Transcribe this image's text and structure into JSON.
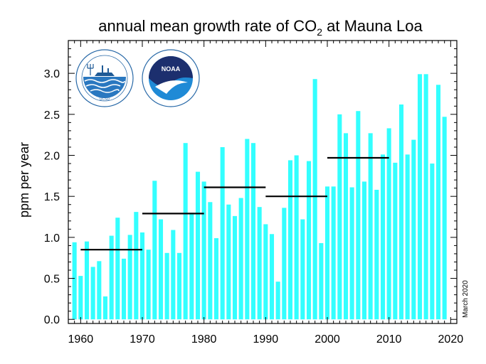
{
  "chart_data": {
    "type": "bar",
    "title": "annual mean growth rate of CO",
    "title_subscript": "2",
    "title_suffix": " at Mauna Loa",
    "ylabel": "ppm per year",
    "xlabel": "",
    "note": "March 2020",
    "xlim": [
      1958,
      2021
    ],
    "ylim": [
      -0.05,
      3.4
    ],
    "x_ticks": [
      1960,
      1970,
      1980,
      1990,
      2000,
      2010,
      2020
    ],
    "y_ticks": [
      0.0,
      0.5,
      1.0,
      1.5,
      2.0,
      2.5,
      3.0
    ],
    "y_tick_labels": [
      "0.0",
      "0.5",
      "1.0",
      "1.5",
      "2.0",
      "2.5",
      "3.0"
    ],
    "bar_color": "#33ffff",
    "x": [
      1959,
      1960,
      1961,
      1962,
      1963,
      1964,
      1965,
      1966,
      1967,
      1968,
      1969,
      1970,
      1971,
      1972,
      1973,
      1974,
      1975,
      1976,
      1977,
      1978,
      1979,
      1980,
      1981,
      1982,
      1983,
      1984,
      1985,
      1986,
      1987,
      1988,
      1989,
      1990,
      1991,
      1992,
      1993,
      1994,
      1995,
      1996,
      1997,
      1998,
      1999,
      2000,
      2001,
      2002,
      2003,
      2004,
      2005,
      2006,
      2007,
      2008,
      2009,
      2010,
      2011,
      2012,
      2013,
      2014,
      2015,
      2016,
      2017,
      2018,
      2019
    ],
    "values": [
      0.94,
      0.53,
      0.95,
      0.64,
      0.71,
      0.28,
      1.02,
      1.24,
      0.74,
      1.03,
      1.31,
      1.06,
      0.85,
      1.69,
      1.22,
      0.81,
      1.09,
      0.81,
      2.15,
      1.3,
      1.8,
      1.68,
      1.43,
      0.99,
      2.1,
      1.4,
      1.26,
      1.48,
      2.2,
      2.15,
      1.37,
      1.16,
      1.04,
      0.46,
      1.36,
      1.94,
      2.0,
      1.22,
      1.93,
      2.93,
      0.93,
      1.62,
      1.62,
      2.5,
      2.27,
      1.61,
      2.54,
      1.68,
      2.27,
      1.58,
      2.01,
      2.33,
      1.91,
      2.62,
      2.01,
      2.19,
      2.99,
      2.99,
      1.9,
      2.86,
      2.47
    ],
    "decade_means": [
      {
        "start": 1960,
        "end": 1970,
        "value": 0.85
      },
      {
        "start": 1970,
        "end": 1980,
        "value": 1.29
      },
      {
        "start": 1980,
        "end": 1990,
        "value": 1.61
      },
      {
        "start": 1990,
        "end": 2000,
        "value": 1.5
      },
      {
        "start": 2000,
        "end": 2010,
        "value": 1.97
      }
    ],
    "grid": false
  },
  "logos": {
    "scripps": {
      "label": "SCRIPPS INSTITUTION OF OCEANOGRAPHY",
      "sub": "UCSD",
      "icon": "scripps-seal"
    },
    "noaa": {
      "label": "NOAA",
      "ring_text": "NATIONAL OCEANIC AND ATMOSPHERIC ADMINISTRATION",
      "sub": "U.S. DEPARTMENT OF COMMERCE",
      "icon": "noaa-seal"
    }
  }
}
